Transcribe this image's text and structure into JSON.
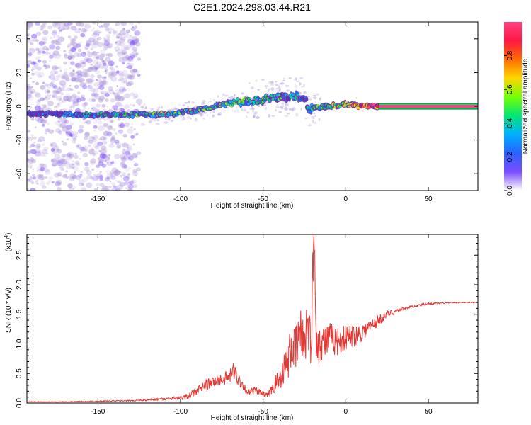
{
  "figure_title": "C2E1.2024.298.03.44.R21",
  "colors": {
    "snr_line": "#e53935",
    "axis": "#000000",
    "stripe_outline": "#1b5e20"
  },
  "chart_data": [
    {
      "type": "heatmap",
      "title": "",
      "xlabel": "Height of straight line (km)",
      "ylabel": "Frequency (Hz)",
      "xlim": [
        -193,
        80
      ],
      "ylim": [
        -50,
        50
      ],
      "xticks": [
        -150,
        -100,
        -50,
        0,
        50
      ],
      "yticks": [
        -40,
        -20,
        0,
        20,
        40
      ],
      "colorbar": {
        "label": "Normalized spectral amplitude",
        "range": [
          0.0,
          1.0
        ],
        "ticks": [
          "0.0",
          "0.2",
          "0.4",
          "0.6",
          "0.8"
        ],
        "tick_values": [
          0.0,
          0.2,
          0.4,
          0.6,
          0.8
        ],
        "colormap": [
          "#ffffff",
          "#7c4dff",
          "#2962ff",
          "#00b0ff",
          "#00e676",
          "#76ff03",
          "#ffd600",
          "#ff6d00",
          "#ff1744",
          "#ff4081"
        ]
      },
      "ridge": {
        "x": [
          -193,
          -180,
          -165,
          -150,
          -135,
          -120,
          -110,
          -100,
          -90,
          -80,
          -70,
          -60,
          -50,
          -40,
          -30,
          -25,
          -22,
          -20,
          -15,
          -10,
          -5,
          0,
          5,
          10,
          20,
          40,
          60,
          80
        ],
        "freq": [
          -4,
          -4.5,
          -5,
          -5,
          -5,
          -5,
          -4.5,
          -4,
          -2.5,
          0,
          2,
          3,
          4,
          5,
          6,
          4,
          -2,
          -1,
          -0.5,
          0,
          0.5,
          1.5,
          0.5,
          0,
          0,
          0,
          0,
          0
        ],
        "amplitude": [
          0.15,
          0.2,
          0.25,
          0.3,
          0.35,
          0.4,
          0.45,
          0.45,
          0.4,
          0.4,
          0.4,
          0.45,
          0.4,
          0.35,
          0.35,
          0.3,
          0.3,
          0.4,
          0.45,
          0.5,
          0.55,
          0.6,
          0.7,
          0.8,
          0.9,
          0.95,
          0.95,
          0.95
        ]
      },
      "constant_band": {
        "x_start": 20,
        "x_end": 80,
        "freq": 0,
        "amplitude": 0.95
      }
    },
    {
      "type": "line",
      "title": "",
      "xlabel": "Height of straight line (km)",
      "ylabel": "SNR (10 * v/v)",
      "y_multiplier_label": "(x10",
      "y_multiplier_exp": "4",
      "y_multiplier_close": ")",
      "xlim": [
        -193,
        80
      ],
      "ylim": [
        0,
        2.85
      ],
      "xticks": [
        -150,
        -100,
        -50,
        0,
        50
      ],
      "yticks": [
        "0.0",
        "0.5",
        "1.0",
        "1.5",
        "2.0",
        "2.5"
      ],
      "ytick_values": [
        0,
        0.5,
        1.0,
        1.5,
        2.0,
        2.5
      ],
      "series": [
        {
          "x": [
            -193,
            -170,
            -150,
            -130,
            -120,
            -110,
            -100,
            -95,
            -90,
            -85,
            -80,
            -75,
            -70,
            -68,
            -65,
            -62,
            -60,
            -58,
            -55,
            -50,
            -47,
            -45,
            -42,
            -40,
            -38,
            -35,
            -33,
            -30,
            -28,
            -25,
            -23,
            -21,
            -20,
            -19,
            -18,
            -17,
            -15,
            -12,
            -10,
            -5,
            0,
            5,
            10,
            15,
            20,
            25,
            30,
            35,
            40,
            50,
            60,
            70,
            80
          ],
          "y": [
            0.02,
            0.02,
            0.03,
            0.04,
            0.05,
            0.07,
            0.09,
            0.12,
            0.2,
            0.3,
            0.35,
            0.4,
            0.45,
            0.55,
            0.4,
            0.3,
            0.2,
            0.18,
            0.22,
            0.15,
            0.12,
            0.22,
            0.35,
            0.4,
            0.55,
            0.7,
            0.95,
            0.9,
            1.2,
            1.05,
            1.4,
            0.95,
            2.1,
            2.85,
            1.3,
            1.0,
            1.05,
            1.05,
            1.1,
            1.05,
            1.1,
            1.15,
            1.2,
            1.3,
            1.4,
            1.5,
            1.55,
            1.6,
            1.63,
            1.68,
            1.69,
            1.7,
            1.7
          ],
          "noise": [
            0.005,
            0.005,
            0.01,
            0.01,
            0.015,
            0.02,
            0.03,
            0.05,
            0.08,
            0.1,
            0.1,
            0.1,
            0.12,
            0.15,
            0.12,
            0.08,
            0.06,
            0.06,
            0.06,
            0.05,
            0.05,
            0.1,
            0.15,
            0.18,
            0.25,
            0.3,
            0.4,
            0.4,
            0.45,
            0.45,
            0.45,
            0.4,
            0.5,
            0.5,
            0.45,
            0.4,
            0.35,
            0.3,
            0.28,
            0.25,
            0.22,
            0.2,
            0.16,
            0.12,
            0.1,
            0.06,
            0.04,
            0.03,
            0.02,
            0.015,
            0.01,
            0.008,
            0.008
          ]
        }
      ]
    }
  ]
}
